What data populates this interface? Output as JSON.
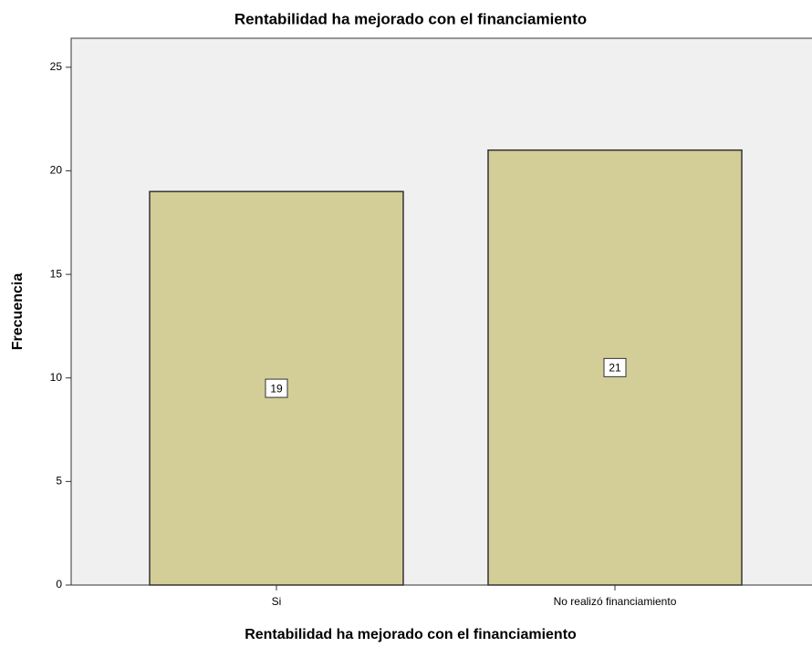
{
  "chart_data": {
    "type": "bar",
    "title": "Rentabilidad ha mejorado con el financiamiento",
    "x_label": "Rentabilidad ha mejorado con el financiamiento",
    "y_label": "Frecuencia",
    "categories": [
      "Si",
      "No realizó financiamiento"
    ],
    "values": [
      19,
      21
    ],
    "color": "#d3ce97",
    "ylim": [
      0,
      26.4
    ],
    "yticks": [
      0,
      5,
      10,
      15,
      20,
      25
    ],
    "grid": false
  }
}
